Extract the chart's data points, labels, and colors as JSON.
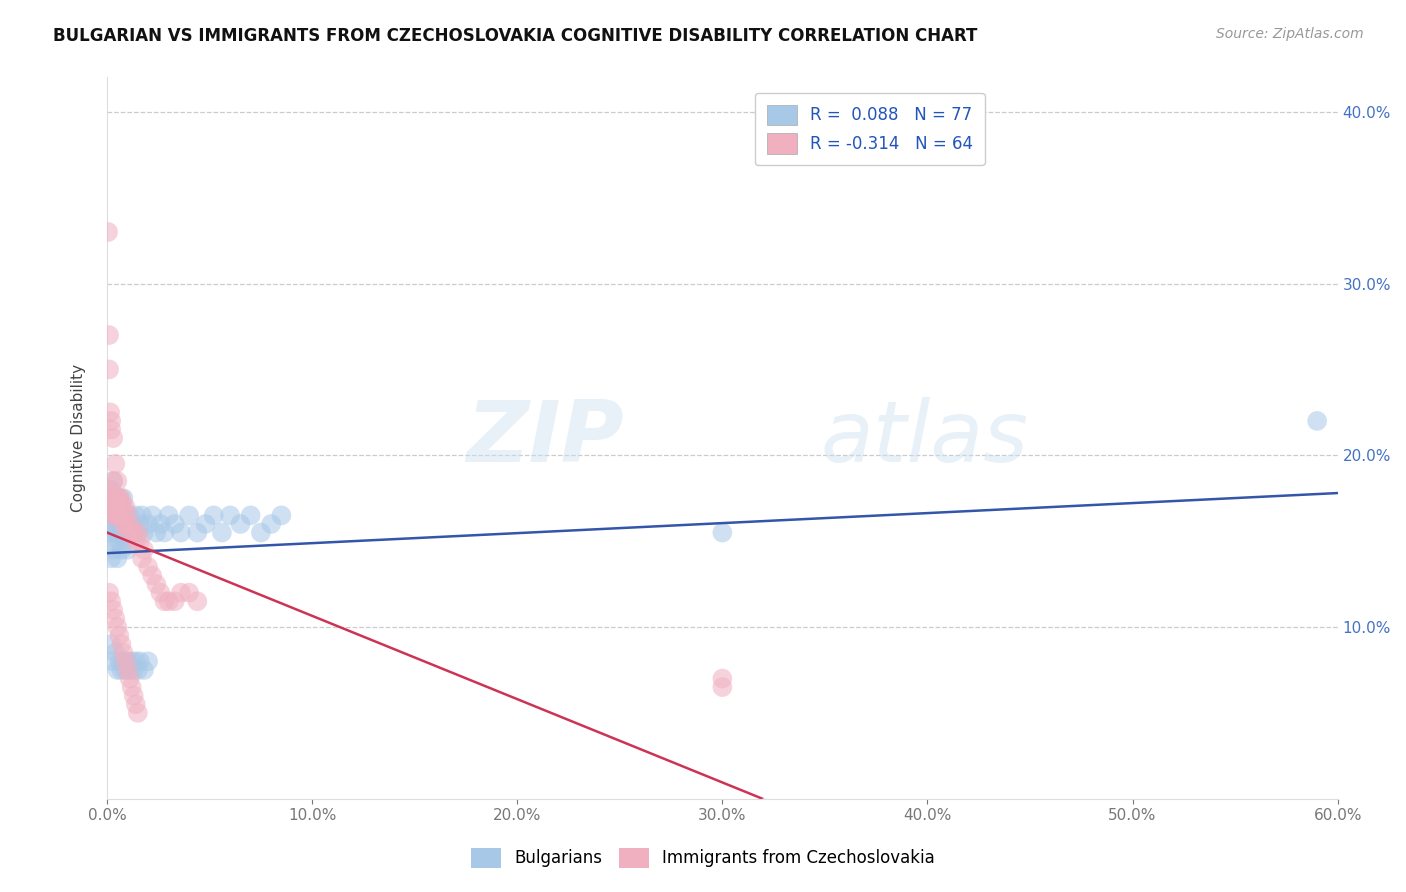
{
  "title": "BULGARIAN VS IMMIGRANTS FROM CZECHOSLOVAKIA COGNITIVE DISABILITY CORRELATION CHART",
  "source": "Source: ZipAtlas.com",
  "ylabel": "Cognitive Disability",
  "xlim": [
    0.0,
    0.6
  ],
  "ylim": [
    0.0,
    0.42
  ],
  "xticks": [
    0.0,
    0.1,
    0.2,
    0.3,
    0.4,
    0.5,
    0.6
  ],
  "yticks": [
    0.1,
    0.2,
    0.3,
    0.4
  ],
  "xtick_labels": [
    "0.0%",
    "10.0%",
    "20.0%",
    "30.0%",
    "40.0%",
    "50.0%",
    "60.0%"
  ],
  "ytick_labels_right": [
    "10.0%",
    "20.0%",
    "30.0%",
    "40.0%"
  ],
  "blue_color": "#a8c8e8",
  "pink_color": "#f0b0c0",
  "blue_line_color": "#3355aa",
  "pink_line_color": "#cc3355",
  "R_blue": 0.088,
  "N_blue": 77,
  "R_pink": -0.314,
  "N_pink": 64,
  "legend_label_blue": "Bulgarians",
  "legend_label_pink": "Immigrants from Czechoslovakia",
  "watermark_zip": "ZIP",
  "watermark_atlas": "atlas",
  "blue_scatter_x": [
    0.001,
    0.001,
    0.001,
    0.002,
    0.002,
    0.002,
    0.002,
    0.003,
    0.003,
    0.003,
    0.003,
    0.004,
    0.004,
    0.004,
    0.005,
    0.005,
    0.005,
    0.006,
    0.006,
    0.006,
    0.007,
    0.007,
    0.007,
    0.008,
    0.008,
    0.008,
    0.009,
    0.009,
    0.01,
    0.01,
    0.011,
    0.011,
    0.012,
    0.013,
    0.014,
    0.015,
    0.016,
    0.017,
    0.018,
    0.02,
    0.022,
    0.024,
    0.026,
    0.028,
    0.03,
    0.033,
    0.036,
    0.04,
    0.044,
    0.048,
    0.052,
    0.056,
    0.06,
    0.065,
    0.07,
    0.075,
    0.08,
    0.085,
    0.3,
    0.59,
    0.002,
    0.003,
    0.004,
    0.005,
    0.006,
    0.007,
    0.008,
    0.009,
    0.01,
    0.011,
    0.012,
    0.013,
    0.014,
    0.015,
    0.016,
    0.018,
    0.02
  ],
  "blue_scatter_y": [
    0.155,
    0.165,
    0.175,
    0.14,
    0.155,
    0.165,
    0.18,
    0.145,
    0.16,
    0.175,
    0.185,
    0.15,
    0.165,
    0.175,
    0.14,
    0.155,
    0.17,
    0.15,
    0.16,
    0.175,
    0.145,
    0.16,
    0.17,
    0.155,
    0.165,
    0.175,
    0.15,
    0.165,
    0.145,
    0.16,
    0.155,
    0.165,
    0.16,
    0.155,
    0.165,
    0.155,
    0.16,
    0.165,
    0.155,
    0.16,
    0.165,
    0.155,
    0.16,
    0.155,
    0.165,
    0.16,
    0.155,
    0.165,
    0.155,
    0.16,
    0.165,
    0.155,
    0.165,
    0.16,
    0.165,
    0.155,
    0.16,
    0.165,
    0.155,
    0.22,
    0.09,
    0.08,
    0.085,
    0.075,
    0.08,
    0.075,
    0.08,
    0.075,
    0.08,
    0.075,
    0.08,
    0.075,
    0.08,
    0.075,
    0.08,
    0.075,
    0.08
  ],
  "pink_scatter_x": [
    0.0005,
    0.001,
    0.001,
    0.001,
    0.001,
    0.0015,
    0.002,
    0.002,
    0.002,
    0.002,
    0.003,
    0.003,
    0.003,
    0.004,
    0.004,
    0.004,
    0.005,
    0.005,
    0.005,
    0.006,
    0.006,
    0.007,
    0.007,
    0.008,
    0.008,
    0.009,
    0.009,
    0.01,
    0.01,
    0.011,
    0.012,
    0.013,
    0.014,
    0.015,
    0.016,
    0.017,
    0.018,
    0.02,
    0.022,
    0.024,
    0.026,
    0.028,
    0.03,
    0.033,
    0.036,
    0.04,
    0.044,
    0.3,
    0.3,
    0.001,
    0.002,
    0.003,
    0.004,
    0.005,
    0.006,
    0.007,
    0.008,
    0.009,
    0.01,
    0.011,
    0.012,
    0.013,
    0.014,
    0.015
  ],
  "pink_scatter_y": [
    0.33,
    0.25,
    0.27,
    0.17,
    0.18,
    0.225,
    0.22,
    0.215,
    0.165,
    0.175,
    0.21,
    0.185,
    0.175,
    0.195,
    0.175,
    0.165,
    0.185,
    0.175,
    0.165,
    0.175,
    0.165,
    0.175,
    0.165,
    0.17,
    0.16,
    0.17,
    0.16,
    0.165,
    0.155,
    0.16,
    0.155,
    0.155,
    0.15,
    0.155,
    0.15,
    0.14,
    0.145,
    0.135,
    0.13,
    0.125,
    0.12,
    0.115,
    0.115,
    0.115,
    0.12,
    0.12,
    0.115,
    0.07,
    0.065,
    0.12,
    0.115,
    0.11,
    0.105,
    0.1,
    0.095,
    0.09,
    0.085,
    0.08,
    0.075,
    0.07,
    0.065,
    0.06,
    0.055,
    0.05
  ]
}
